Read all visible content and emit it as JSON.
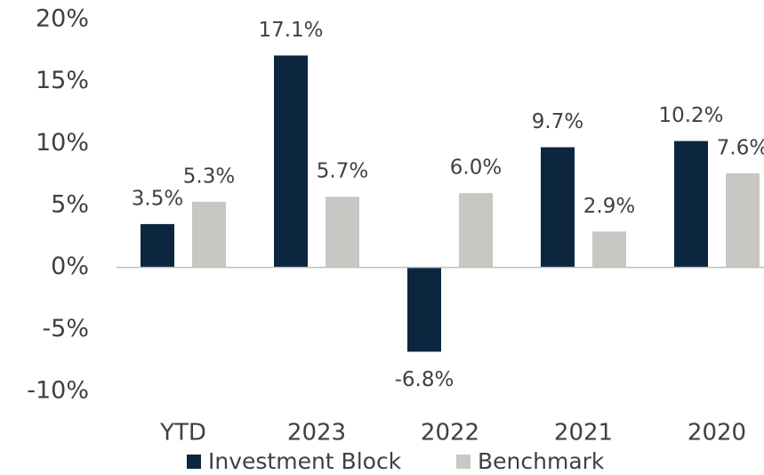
{
  "chart_data": {
    "type": "bar",
    "categories": [
      "YTD",
      "2023",
      "2022",
      "2021",
      "2020"
    ],
    "series": [
      {
        "name": "Investment Block",
        "color": "#0d2640",
        "values": [
          3.5,
          17.1,
          -6.8,
          9.7,
          10.2
        ],
        "value_labels": [
          "3.5%",
          "17.1%",
          "-6.8%",
          "9.7%",
          "10.2%"
        ]
      },
      {
        "name": "Benchmark",
        "color": "#c8c7c3",
        "values": [
          5.3,
          5.7,
          6.0,
          2.9,
          7.6
        ],
        "value_labels": [
          "5.3%",
          "5.7%",
          "6.0%",
          "2.9%",
          "7.6%"
        ]
      }
    ],
    "ylim": [
      -10,
      20
    ],
    "yticks": [
      {
        "value": -10,
        "label": "-10%"
      },
      {
        "value": -5,
        "label": "-5%"
      },
      {
        "value": 0,
        "label": "0%"
      },
      {
        "value": 5,
        "label": "5%"
      },
      {
        "value": 10,
        "label": "10%"
      },
      {
        "value": 15,
        "label": "15%"
      },
      {
        "value": 20,
        "label": "20%"
      }
    ],
    "legend": "bottom"
  }
}
